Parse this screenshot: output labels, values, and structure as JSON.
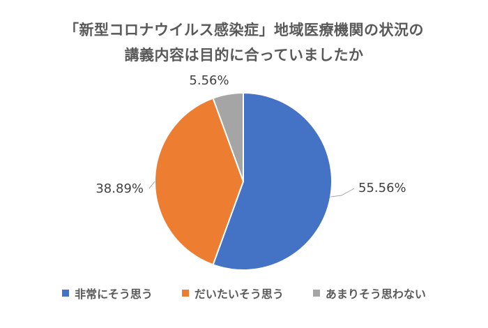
{
  "chart_data": {
    "type": "pie",
    "title_line1": "「新型コロナウイルス感染症」地域医療機関の状況の",
    "title_line2": "講義内容は目的に合っていましたか",
    "categories": [
      "非常にそう思う",
      "だいたいそう思う",
      "あまりそう思わない"
    ],
    "values": [
      55.56,
      38.89,
      5.56
    ],
    "labels": [
      "55.56%",
      "38.89%",
      "5.56%"
    ],
    "colors": [
      "#4472C4",
      "#ED7D31",
      "#A5A5A5"
    ],
    "legend_position": "bottom"
  }
}
